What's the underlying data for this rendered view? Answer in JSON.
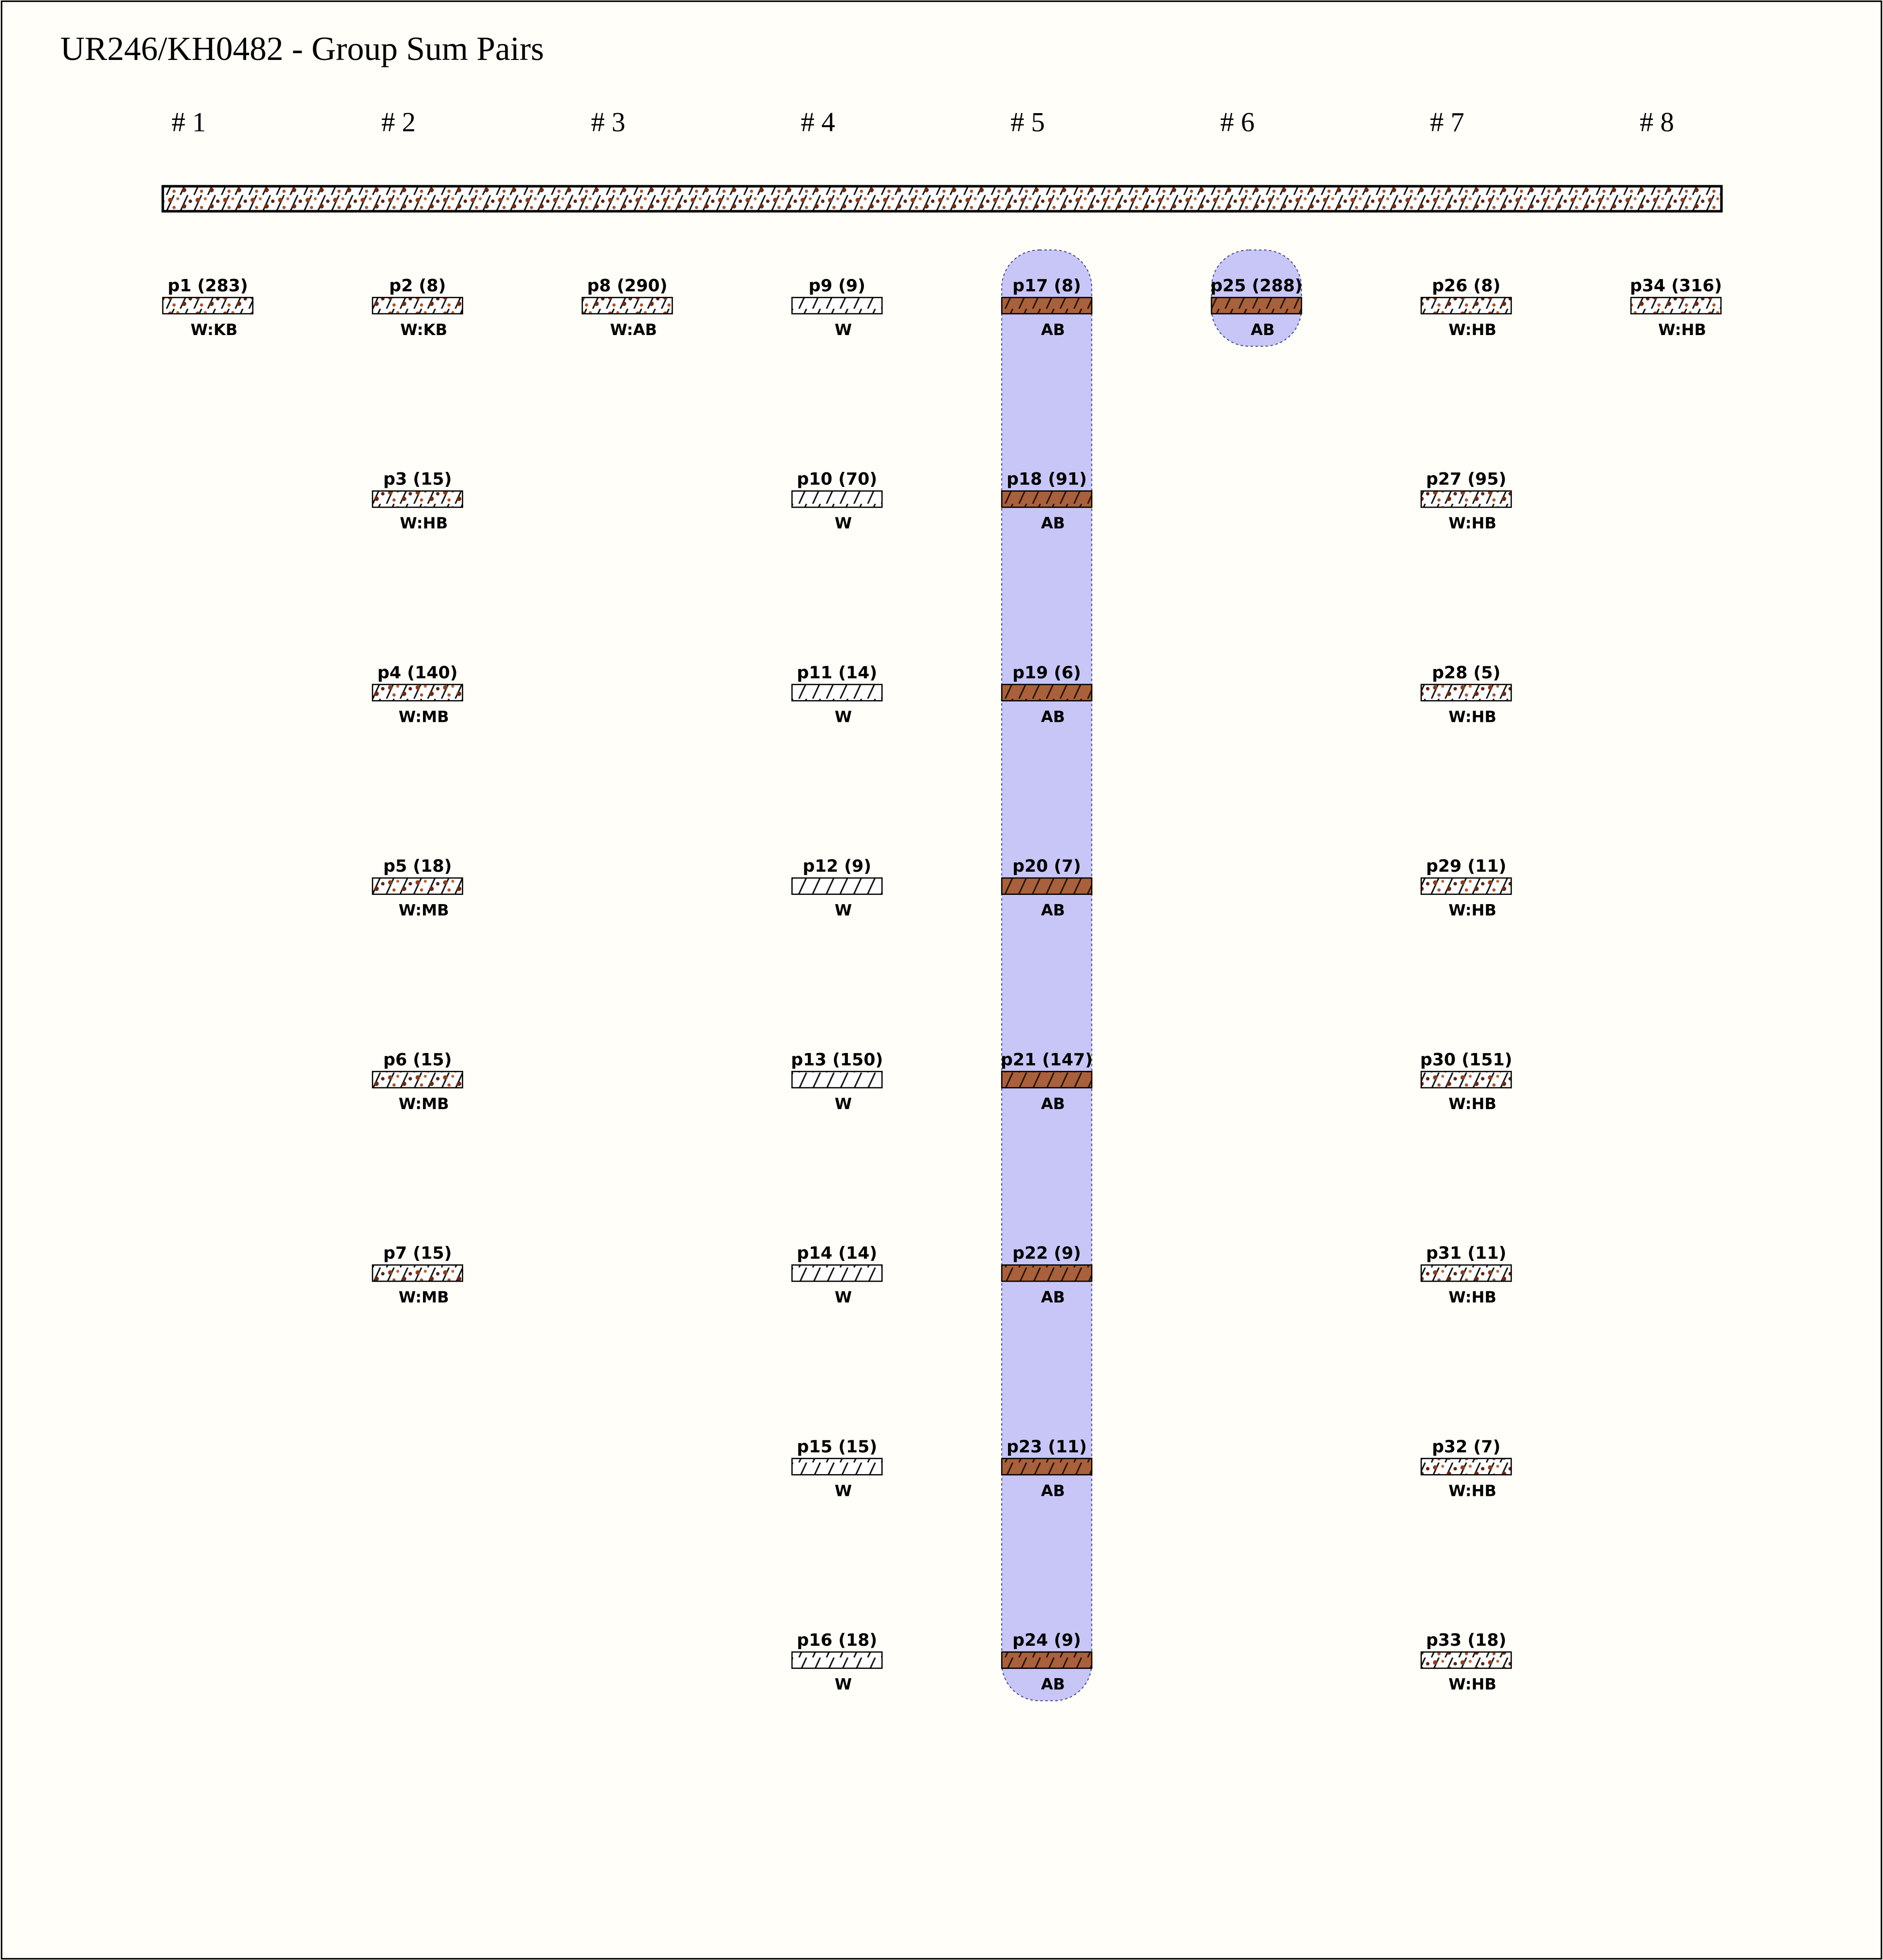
{
  "title": "UR246/KH0482 - Group Sum Pairs",
  "columns": [
    {
      "header": "# 1",
      "highlight": false,
      "items": [
        {
          "label": "p1 (283)",
          "tag": "W:KB",
          "pattern": "speckled"
        }
      ]
    },
    {
      "header": "# 2",
      "highlight": false,
      "items": [
        {
          "label": "p2 (8)",
          "tag": "W:KB",
          "pattern": "speckled"
        },
        {
          "label": "p3 (15)",
          "tag": "W:HB",
          "pattern": "speckled"
        },
        {
          "label": "p4 (140)",
          "tag": "W:MB",
          "pattern": "speckled"
        },
        {
          "label": "p5 (18)",
          "tag": "W:MB",
          "pattern": "speckled"
        },
        {
          "label": "p6 (15)",
          "tag": "W:MB",
          "pattern": "speckled"
        },
        {
          "label": "p7 (15)",
          "tag": "W:MB",
          "pattern": "speckled"
        }
      ]
    },
    {
      "header": "# 3",
      "highlight": false,
      "items": [
        {
          "label": "p8 (290)",
          "tag": "W:AB",
          "pattern": "speckled"
        }
      ]
    },
    {
      "header": "# 4",
      "highlight": false,
      "items": [
        {
          "label": "p9 (9)",
          "tag": "W",
          "pattern": "plain"
        },
        {
          "label": "p10 (70)",
          "tag": "W",
          "pattern": "plain"
        },
        {
          "label": "p11 (14)",
          "tag": "W",
          "pattern": "plain"
        },
        {
          "label": "p12 (9)",
          "tag": "W",
          "pattern": "plain"
        },
        {
          "label": "p13 (150)",
          "tag": "W",
          "pattern": "plain"
        },
        {
          "label": "p14 (14)",
          "tag": "W",
          "pattern": "plain"
        },
        {
          "label": "p15 (15)",
          "tag": "W",
          "pattern": "plain"
        },
        {
          "label": "p16 (18)",
          "tag": "W",
          "pattern": "plain"
        }
      ]
    },
    {
      "header": "# 5",
      "highlight": true,
      "items": [
        {
          "label": "p17 (8)",
          "tag": "AB",
          "pattern": "brown"
        },
        {
          "label": "p18 (91)",
          "tag": "AB",
          "pattern": "brown"
        },
        {
          "label": "p19 (6)",
          "tag": "AB",
          "pattern": "brown"
        },
        {
          "label": "p20 (7)",
          "tag": "AB",
          "pattern": "brown"
        },
        {
          "label": "p21 (147)",
          "tag": "AB",
          "pattern": "brown"
        },
        {
          "label": "p22 (9)",
          "tag": "AB",
          "pattern": "brown"
        },
        {
          "label": "p23 (11)",
          "tag": "AB",
          "pattern": "brown"
        },
        {
          "label": "p24 (9)",
          "tag": "AB",
          "pattern": "brown"
        }
      ]
    },
    {
      "header": "# 6",
      "highlight": true,
      "items": [
        {
          "label": "p25 (288)",
          "tag": "AB",
          "pattern": "brown"
        }
      ]
    },
    {
      "header": "# 7",
      "highlight": false,
      "items": [
        {
          "label": "p26 (8)",
          "tag": "W:HB",
          "pattern": "speckled"
        },
        {
          "label": "p27 (95)",
          "tag": "W:HB",
          "pattern": "speckled"
        },
        {
          "label": "p28 (5)",
          "tag": "W:HB",
          "pattern": "speckled"
        },
        {
          "label": "p29 (11)",
          "tag": "W:HB",
          "pattern": "speckled"
        },
        {
          "label": "p30 (151)",
          "tag": "W:HB",
          "pattern": "speckled"
        },
        {
          "label": "p31 (11)",
          "tag": "W:HB",
          "pattern": "speckled"
        },
        {
          "label": "p32 (7)",
          "tag": "W:HB",
          "pattern": "speckled"
        },
        {
          "label": "p33 (18)",
          "tag": "W:HB",
          "pattern": "speckled"
        }
      ]
    },
    {
      "header": "# 8",
      "highlight": false,
      "items": [
        {
          "label": "p34 (316)",
          "tag": "W:HB",
          "pattern": "speckled"
        }
      ]
    }
  ]
}
